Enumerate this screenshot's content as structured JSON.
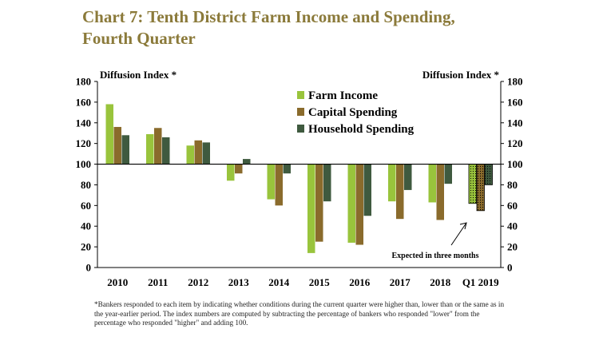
{
  "title_line1": "Chart 7: Tenth District Farm Income and Spending,",
  "title_line2": "Fourth Quarter",
  "footnote": "*Bankers responded to each item by indicating whether conditions during the current quarter were higher than, lower than or the same as in the year-earlier period.  The index numbers are computed by subtracting the percentage of bankers who responded \"lower\" from the percentage who responded \"higher\" and adding 100.",
  "colors": {
    "farm_income": "#99c43c",
    "capital_spending": "#8a6b2c",
    "household_spending": "#3f5a3f",
    "title": "#8b7a3a"
  },
  "chart_data": {
    "type": "bar",
    "title": "Chart 7: Tenth District Farm Income and Spending, Fourth Quarter",
    "ylabel_left": "Diffusion Index *",
    "ylabel_right": "Diffusion Index *",
    "ylim": [
      0,
      180
    ],
    "yticks": [
      0,
      20,
      40,
      60,
      80,
      100,
      120,
      140,
      160,
      180
    ],
    "baseline": 100,
    "categories": [
      "2010",
      "2011",
      "2012",
      "2013",
      "2014",
      "2015",
      "2016",
      "2017",
      "2018",
      "Q1 2019"
    ],
    "series": [
      {
        "name": "Farm Income",
        "values": [
          158,
          129,
          118,
          84,
          66,
          14,
          24,
          64,
          63,
          62
        ]
      },
      {
        "name": "Capital Spending",
        "values": [
          136,
          135,
          123,
          91,
          60,
          25,
          22,
          47,
          46,
          55
        ]
      },
      {
        "name": "Household Spending",
        "values": [
          128,
          126,
          121,
          105,
          91,
          64,
          50,
          75,
          81,
          80
        ]
      }
    ],
    "expected_category": "Q1 2019",
    "annotation": "Expected in three months",
    "legend_position": "top-center",
    "grid": false
  }
}
